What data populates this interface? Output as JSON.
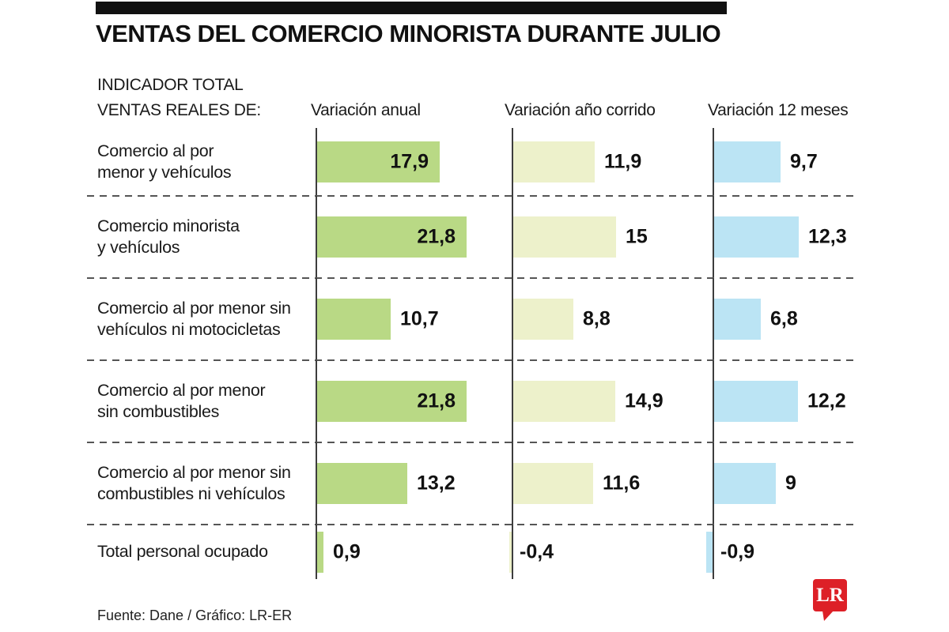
{
  "title": "VENTAS DEL COMERCIO MINORISTA DURANTE JULIO",
  "indicator_header": {
    "line1": "INDICADOR TOTAL",
    "line2": "VENTAS REALES DE:"
  },
  "columns": [
    {
      "label": "Variación anual",
      "color": "#b9d985"
    },
    {
      "label": "Variación año corrido",
      "color": "#edf1cb"
    },
    {
      "label": "Variación 12 meses",
      "color": "#bbe4f4"
    }
  ],
  "footer": {
    "credits": "Fuente: Dane / Gráfico: LR-ER"
  },
  "logo": {
    "text": "LR",
    "background_color": "#dd2027",
    "text_color": "#ffffff"
  },
  "chart_data": {
    "type": "bar",
    "orientation": "horizontal",
    "title": "VENTAS DEL COMERCIO MINORISTA DURANTE JULIO",
    "categories": [
      "Comercio al por menor y vehículos",
      "Comercio minorista y vehículos",
      "Comercio al por menor sin vehículos ni motocicletas",
      "Comercio al por menor sin combustibles",
      "Comercio al por menor sin combustibles ni vehículos",
      "Total personal ocupado"
    ],
    "category_lines": [
      [
        "Comercio al por",
        "menor y vehículos"
      ],
      [
        "Comercio minorista",
        "y vehículos"
      ],
      [
        "Comercio al por menor sin",
        "vehículos ni motocicletas"
      ],
      [
        "Comercio al por menor",
        "sin combustibles"
      ],
      [
        "Comercio al por menor sin",
        "combustibles ni vehículos"
      ],
      [
        "Total personal ocupado"
      ]
    ],
    "series": [
      {
        "name": "Variación anual",
        "color": "#b9d985",
        "values": [
          17.9,
          21.8,
          10.7,
          21.8,
          13.2,
          0.9
        ],
        "value_labels": [
          "17,9",
          "21,8",
          "10,7",
          "21,8",
          "13,2",
          "0,9"
        ]
      },
      {
        "name": "Variación año corrido",
        "color": "#edf1cb",
        "values": [
          11.9,
          15,
          8.8,
          14.9,
          11.6,
          -0.4
        ],
        "value_labels": [
          "11,9",
          "15",
          "8,8",
          "14,9",
          "11,6",
          "-0,4"
        ]
      },
      {
        "name": "Variación 12 meses",
        "color": "#bbe4f4",
        "values": [
          9.7,
          12.3,
          6.8,
          12.2,
          9,
          -0.9
        ],
        "value_labels": [
          "9,7",
          "12,3",
          "6,8",
          "12,2",
          "9",
          "-0,9"
        ]
      }
    ],
    "xlim": [
      -1,
      28
    ],
    "grid": "dashed horizontal row separators",
    "legend_position": "column headers above each bar group"
  }
}
